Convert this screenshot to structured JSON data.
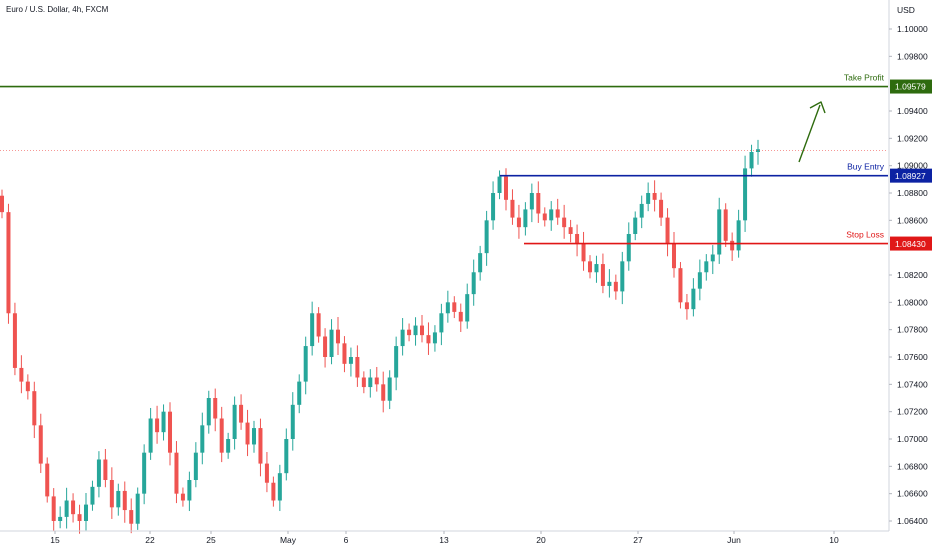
{
  "chart_data": {
    "type": "candlestick",
    "title": "Euro / U.S. Dollar, 4h, FXCM",
    "currency": "USD",
    "y_ticks": [
      "1.10000",
      "1.09800",
      "1.09400",
      "1.09200",
      "1.09000",
      "1.08800",
      "1.08600",
      "1.08200",
      "1.08000",
      "1.07800",
      "1.07600",
      "1.07400",
      "1.07200",
      "1.07000",
      "1.06800",
      "1.06600",
      "1.06400"
    ],
    "x_ticks": [
      "15",
      "22",
      "25",
      "May",
      "6",
      "13",
      "20",
      "27",
      "Jun",
      "10"
    ],
    "levels": [
      {
        "name": "Take Profit",
        "price": "1.09579",
        "color": "#2e6b0e"
      },
      {
        "name": "Buy Entry",
        "price": "1.08927",
        "color": "#0c22a3"
      },
      {
        "name": "Stop Loss",
        "price": "1.08430",
        "color": "#e01717"
      }
    ],
    "current_price": 1.0911,
    "up_color": "#26a69a",
    "down_color": "#ef5350",
    "close_path": [
      1.0866,
      1.0792,
      1.0752,
      1.0742,
      1.0735,
      1.071,
      1.0682,
      1.0658,
      1.064,
      1.0643,
      1.0655,
      1.0645,
      1.064,
      1.0652,
      1.0665,
      1.0685,
      1.067,
      1.065,
      1.0662,
      1.0648,
      1.0638,
      1.066,
      1.069,
      1.0715,
      1.0705,
      1.072,
      1.069,
      1.066,
      1.0655,
      1.067,
      1.069,
      1.071,
      1.073,
      1.0715,
      1.069,
      1.07,
      1.0725,
      1.0712,
      1.0696,
      1.0708,
      1.0682,
      1.0668,
      1.0655,
      1.0675,
      1.07,
      1.0725,
      1.0742,
      1.0768,
      1.0792,
      1.0775,
      1.076,
      1.078,
      1.077,
      1.0755,
      1.076,
      1.0745,
      1.0738,
      1.0745,
      1.074,
      1.0728,
      1.0745,
      1.0768,
      1.078,
      1.0776,
      1.0783,
      1.0776,
      1.077,
      1.0778,
      1.0792,
      1.08,
      1.0793,
      1.0786,
      1.0806,
      1.0822,
      1.0836,
      1.086,
      1.088,
      1.0892,
      1.0875,
      1.0862,
      1.0855,
      1.0868,
      1.088,
      1.0865,
      1.086,
      1.0868,
      1.0862,
      1.0855,
      1.085,
      1.0843,
      1.083,
      1.0822,
      1.0828,
      1.0812,
      1.0815,
      1.0808,
      1.083,
      1.085,
      1.0862,
      1.0872,
      1.088,
      1.0875,
      1.0862,
      1.0843,
      1.0825,
      1.08,
      1.0795,
      1.081,
      1.0822,
      1.083,
      1.0835,
      1.0868,
      1.0845,
      1.0838,
      1.086,
      1.0898,
      1.091,
      1.0912
    ]
  }
}
